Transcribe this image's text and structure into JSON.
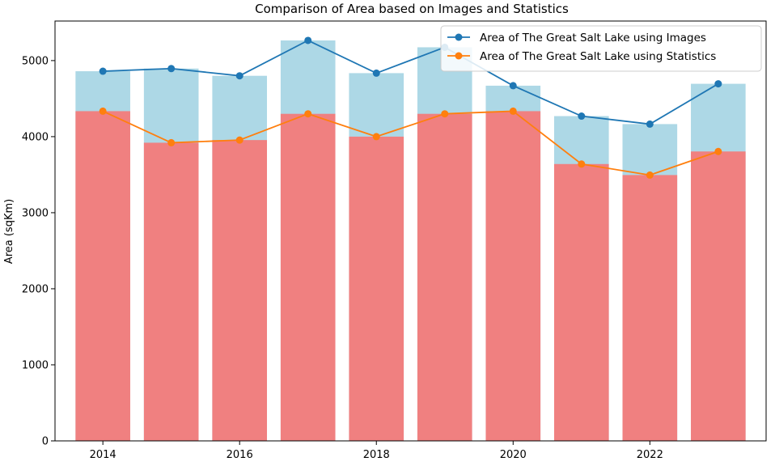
{
  "chart_data": {
    "type": "bar",
    "title": "Comparison of Area based on Images and Statistics",
    "xlabel": "",
    "ylabel": "Area (sqKm)",
    "x": [
      2014,
      2015,
      2016,
      2017,
      2018,
      2019,
      2020,
      2021,
      2022,
      2023
    ],
    "xlim": [
      2013.3,
      2023.7
    ],
    "ylim": [
      0,
      5520
    ],
    "x_ticks": [
      2014,
      2016,
      2018,
      2020,
      2022
    ],
    "y_ticks": [
      0,
      1000,
      2000,
      3000,
      4000,
      5000
    ],
    "grid": false,
    "legend_position": "top-right",
    "series": [
      {
        "name": "Area of The Great Salt Lake using Images",
        "values": [
          4860,
          4895,
          4800,
          5265,
          4835,
          5175,
          4670,
          4270,
          4165,
          4695
        ],
        "bar_color": "#add8e6",
        "line_color": "#1f77b4"
      },
      {
        "name": "Area of The Great Salt Lake using Statistics",
        "values": [
          4335,
          3920,
          3955,
          4300,
          4000,
          4300,
          4335,
          3640,
          3495,
          3805
        ],
        "bar_color": "#f08080",
        "line_color": "#ff7f0e"
      }
    ]
  }
}
